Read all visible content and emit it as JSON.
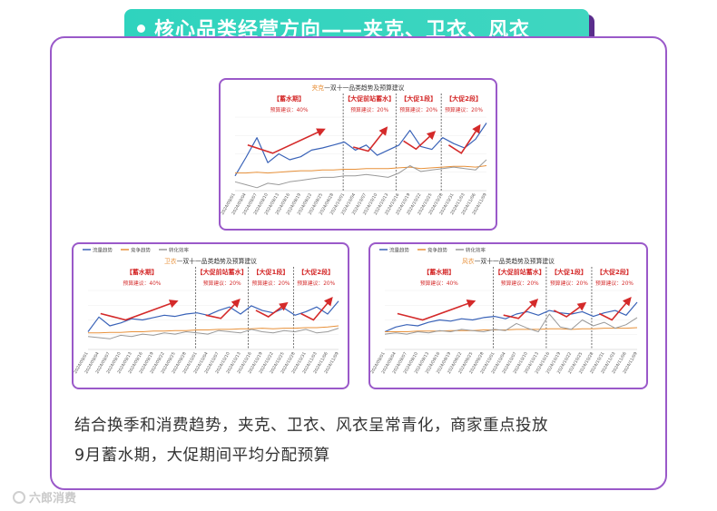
{
  "header": {
    "title": "核心品类经营方向——夹克、卫衣、风衣"
  },
  "summary": {
    "line1": "结合换季和消费趋势，夹克、卫衣、风衣呈常青化，商家重点投放",
    "line2": "9月蓄水期，大促期间平均分配预算"
  },
  "watermark": {
    "text": "六郎消费"
  },
  "colors": {
    "frame": "#9a59c9",
    "banner": "#2fd3be",
    "flow": "#3a63b8",
    "competition": "#e8913a",
    "conversion": "#9a9a9a",
    "arrow": "#d42a2a",
    "phase_label": "#d42a2a"
  },
  "chart_data": [
    {
      "type": "line",
      "title_item": "夹克",
      "title_rest": "—双十一品类趋势及预算建议",
      "legend": [],
      "phases": [
        {
          "label": "【蓄水期】",
          "budget": "预算建议：40%"
        },
        {
          "label": "【大促前站蓄水】",
          "budget": "预算建议：20%"
        },
        {
          "label": "【大促1段】",
          "budget": "预算建议：20%"
        },
        {
          "label": "【大促2段】",
          "budget": "预算建议：20%"
        }
      ],
      "phase_bounds": [
        0,
        0.43,
        0.64,
        0.82,
        1
      ],
      "x": [
        "2024/09/01",
        "2024/09/04",
        "2024/09/07",
        "2024/09/10",
        "2024/09/13",
        "2024/09/16",
        "2024/09/19",
        "2024/09/22",
        "2024/09/25",
        "2024/09/28",
        "2024/10/01",
        "2024/10/04",
        "2024/10/07",
        "2024/10/10",
        "2024/10/13",
        "2024/10/16",
        "2024/10/19",
        "2024/10/22",
        "2024/10/25",
        "2024/10/28",
        "2024/10/31",
        "2024/11/03",
        "2024/11/06",
        "2024/11/09"
      ],
      "series": [
        {
          "key": "flow",
          "values": [
            20,
            45,
            72,
            38,
            50,
            42,
            46,
            55,
            58,
            62,
            66,
            55,
            62,
            48,
            55,
            62,
            82,
            60,
            56,
            72,
            64,
            58,
            70,
            92
          ]
        },
        {
          "key": "competition",
          "values": [
            24,
            24,
            25,
            24,
            25,
            26,
            27,
            27,
            28,
            28,
            29,
            29,
            30,
            30,
            30,
            31,
            32,
            30,
            31,
            32,
            33,
            33,
            32,
            34
          ]
        },
        {
          "key": "conversion",
          "values": [
            12,
            8,
            4,
            10,
            8,
            12,
            14,
            16,
            18,
            18,
            20,
            20,
            22,
            20,
            18,
            24,
            34,
            26,
            28,
            30,
            32,
            30,
            28,
            42
          ]
        }
      ],
      "ylim": [
        0,
        100
      ]
    },
    {
      "type": "line",
      "title_item": "卫衣",
      "title_rest": "—双十一品类趋势及预算建议",
      "legend": [
        "流量趋势",
        "竞争趋势",
        "转化效率"
      ],
      "phases": [
        {
          "label": "【蓄水期】",
          "budget": "预算建议：40%"
        },
        {
          "label": "【大促前站蓄水】",
          "budget": "预算建议：20%"
        },
        {
          "label": "【大促1段】",
          "budget": "预算建议：20%"
        },
        {
          "label": "【大促2段】",
          "budget": "预算建议：20%"
        }
      ],
      "phase_bounds": [
        0,
        0.43,
        0.64,
        0.82,
        1
      ],
      "x": [
        "2024/09/01",
        "2024/09/04",
        "2024/09/07",
        "2024/09/10",
        "2024/09/13",
        "2024/09/16",
        "2024/09/19",
        "2024/09/22",
        "2024/09/25",
        "2024/09/28",
        "2024/10/01",
        "2024/10/04",
        "2024/10/07",
        "2024/10/10",
        "2024/10/13",
        "2024/10/16",
        "2024/10/19",
        "2024/10/22",
        "2024/10/25",
        "2024/10/28",
        "2024/10/31",
        "2024/11/03",
        "2024/11/06",
        "2024/11/09"
      ],
      "series": [
        {
          "key": "flow",
          "values": [
            30,
            55,
            40,
            45,
            52,
            50,
            54,
            58,
            56,
            60,
            62,
            58,
            66,
            72,
            60,
            74,
            66,
            62,
            70,
            58,
            64,
            72,
            60,
            82
          ]
        },
        {
          "key": "competition",
          "values": [
            28,
            28,
            29,
            29,
            30,
            30,
            31,
            31,
            32,
            32,
            33,
            33,
            34,
            34,
            35,
            35,
            36,
            35,
            36,
            36,
            37,
            37,
            38,
            40
          ]
        },
        {
          "key": "conversion",
          "values": [
            22,
            20,
            18,
            24,
            22,
            26,
            24,
            28,
            26,
            30,
            28,
            26,
            32,
            30,
            28,
            34,
            30,
            28,
            32,
            30,
            34,
            28,
            30,
            36
          ]
        }
      ],
      "ylim": [
        0,
        100
      ]
    },
    {
      "type": "line",
      "title_item": "风衣",
      "title_rest": "—双十一品类趋势及预算建议",
      "legend": [
        "流量趋势",
        "竞争趋势",
        "转化效率"
      ],
      "phases": [
        {
          "label": "【蓄水期】",
          "budget": "预算建议：40%"
        },
        {
          "label": "【大促前站蓄水】",
          "budget": "预算建议：20%"
        },
        {
          "label": "【大促1段】",
          "budget": "预算建议：20%"
        },
        {
          "label": "【大促2段】",
          "budget": "预算建议：20%"
        }
      ],
      "phase_bounds": [
        0,
        0.43,
        0.64,
        0.82,
        1
      ],
      "x": [
        "2024/09/01",
        "2024/09/04",
        "2024/09/07",
        "2024/09/10",
        "2024/09/13",
        "2024/09/16",
        "2024/09/19",
        "2024/09/22",
        "2024/09/25",
        "2024/09/28",
        "2024/10/01",
        "2024/10/04",
        "2024/10/07",
        "2024/10/10",
        "2024/10/13",
        "2024/10/16",
        "2024/10/19",
        "2024/10/22",
        "2024/10/25",
        "2024/10/28",
        "2024/10/31",
        "2024/11/03",
        "2024/11/06",
        "2024/11/09"
      ],
      "series": [
        {
          "key": "flow",
          "values": [
            30,
            38,
            42,
            40,
            46,
            50,
            48,
            52,
            50,
            54,
            56,
            52,
            60,
            64,
            58,
            66,
            62,
            60,
            64,
            56,
            62,
            66,
            58,
            80
          ]
        },
        {
          "key": "competition",
          "values": [
            30,
            30,
            30,
            31,
            31,
            31,
            32,
            32,
            32,
            33,
            33,
            33,
            34,
            34,
            34,
            35,
            35,
            34,
            35,
            35,
            36,
            36,
            36,
            37
          ]
        },
        {
          "key": "conversion",
          "values": [
            26,
            28,
            26,
            30,
            28,
            32,
            30,
            34,
            32,
            30,
            34,
            32,
            44,
            36,
            30,
            60,
            38,
            34,
            50,
            40,
            46,
            36,
            42,
            54
          ]
        }
      ],
      "ylim": [
        0,
        100
      ]
    }
  ]
}
